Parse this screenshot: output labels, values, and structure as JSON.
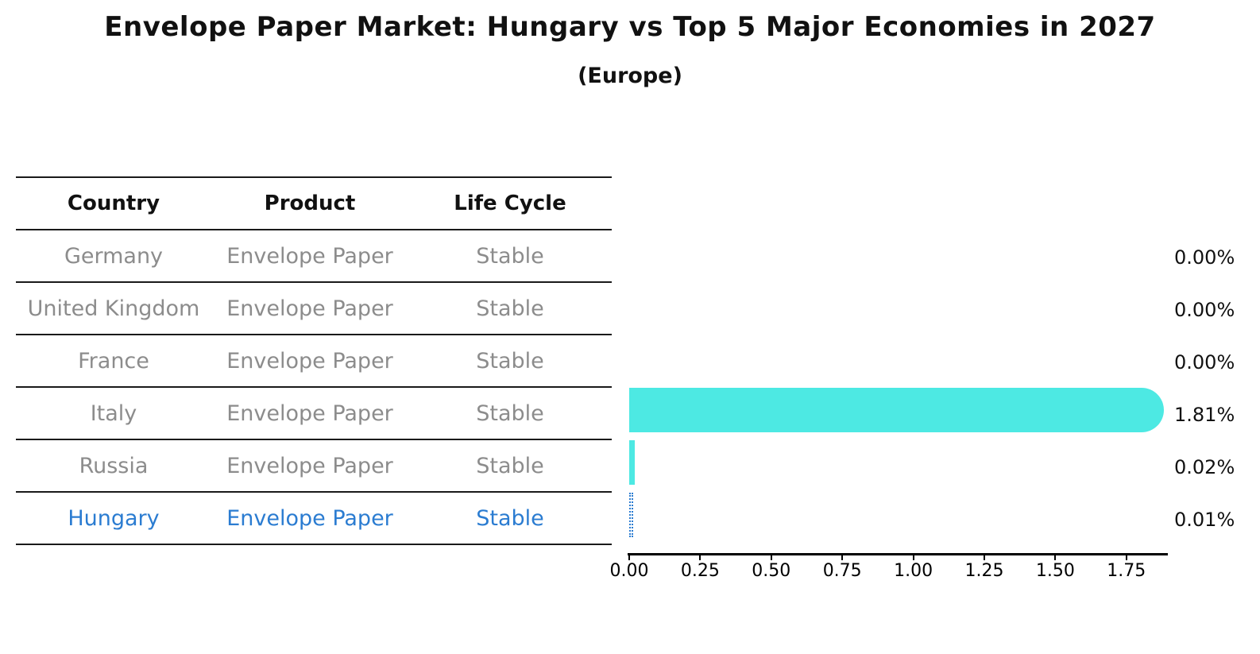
{
  "title": "Envelope Paper Market: Hungary vs Top 5 Major Economies in 2027",
  "subtitle": "(Europe)",
  "table": {
    "headers": {
      "country": "Country",
      "product": "Product",
      "life_cycle": "Life Cycle"
    },
    "rows": [
      {
        "country": "Germany",
        "product": "Envelope Paper",
        "life_cycle": "Stable",
        "highlight": false
      },
      {
        "country": "United Kingdom",
        "product": "Envelope Paper",
        "life_cycle": "Stable",
        "highlight": false
      },
      {
        "country": "France",
        "product": "Envelope Paper",
        "life_cycle": "Stable",
        "highlight": false
      },
      {
        "country": "Italy",
        "product": "Envelope Paper",
        "life_cycle": "Stable",
        "highlight": false
      },
      {
        "country": "Russia",
        "product": "Envelope Paper",
        "life_cycle": "Stable",
        "highlight": false
      },
      {
        "country": "Hungary",
        "product": "Envelope Paper",
        "life_cycle": "Stable",
        "highlight": true
      }
    ]
  },
  "chart_data": {
    "type": "bar",
    "orientation": "horizontal",
    "title": "Envelope Paper Market: Hungary vs Top 5 Major Economies in 2027",
    "subtitle": "(Europe)",
    "categories": [
      "Germany",
      "United Kingdom",
      "France",
      "Italy",
      "Russia",
      "Hungary"
    ],
    "values": [
      0.0,
      0.0,
      0.0,
      1.81,
      0.02,
      0.01
    ],
    "value_labels": [
      "0.00%",
      "0.00%",
      "0.00%",
      "1.81%",
      "0.02%",
      "0.01%"
    ],
    "xticks": [
      "0.00",
      "0.25",
      "0.50",
      "0.75",
      "1.00",
      "1.25",
      "1.50",
      "1.75"
    ],
    "xlim": [
      0,
      1.9
    ],
    "grid": false,
    "legend": false,
    "highlight_category": "Hungary",
    "bar_color": "#4de9e3",
    "highlight_color": "#2b7cd1"
  },
  "colors": {
    "background": "#ffffff",
    "text": "#111111",
    "muted_text": "#8c8c8c",
    "rule": "#1a1a1a",
    "bar": "#4de9e3",
    "highlight": "#2b7cd1"
  }
}
